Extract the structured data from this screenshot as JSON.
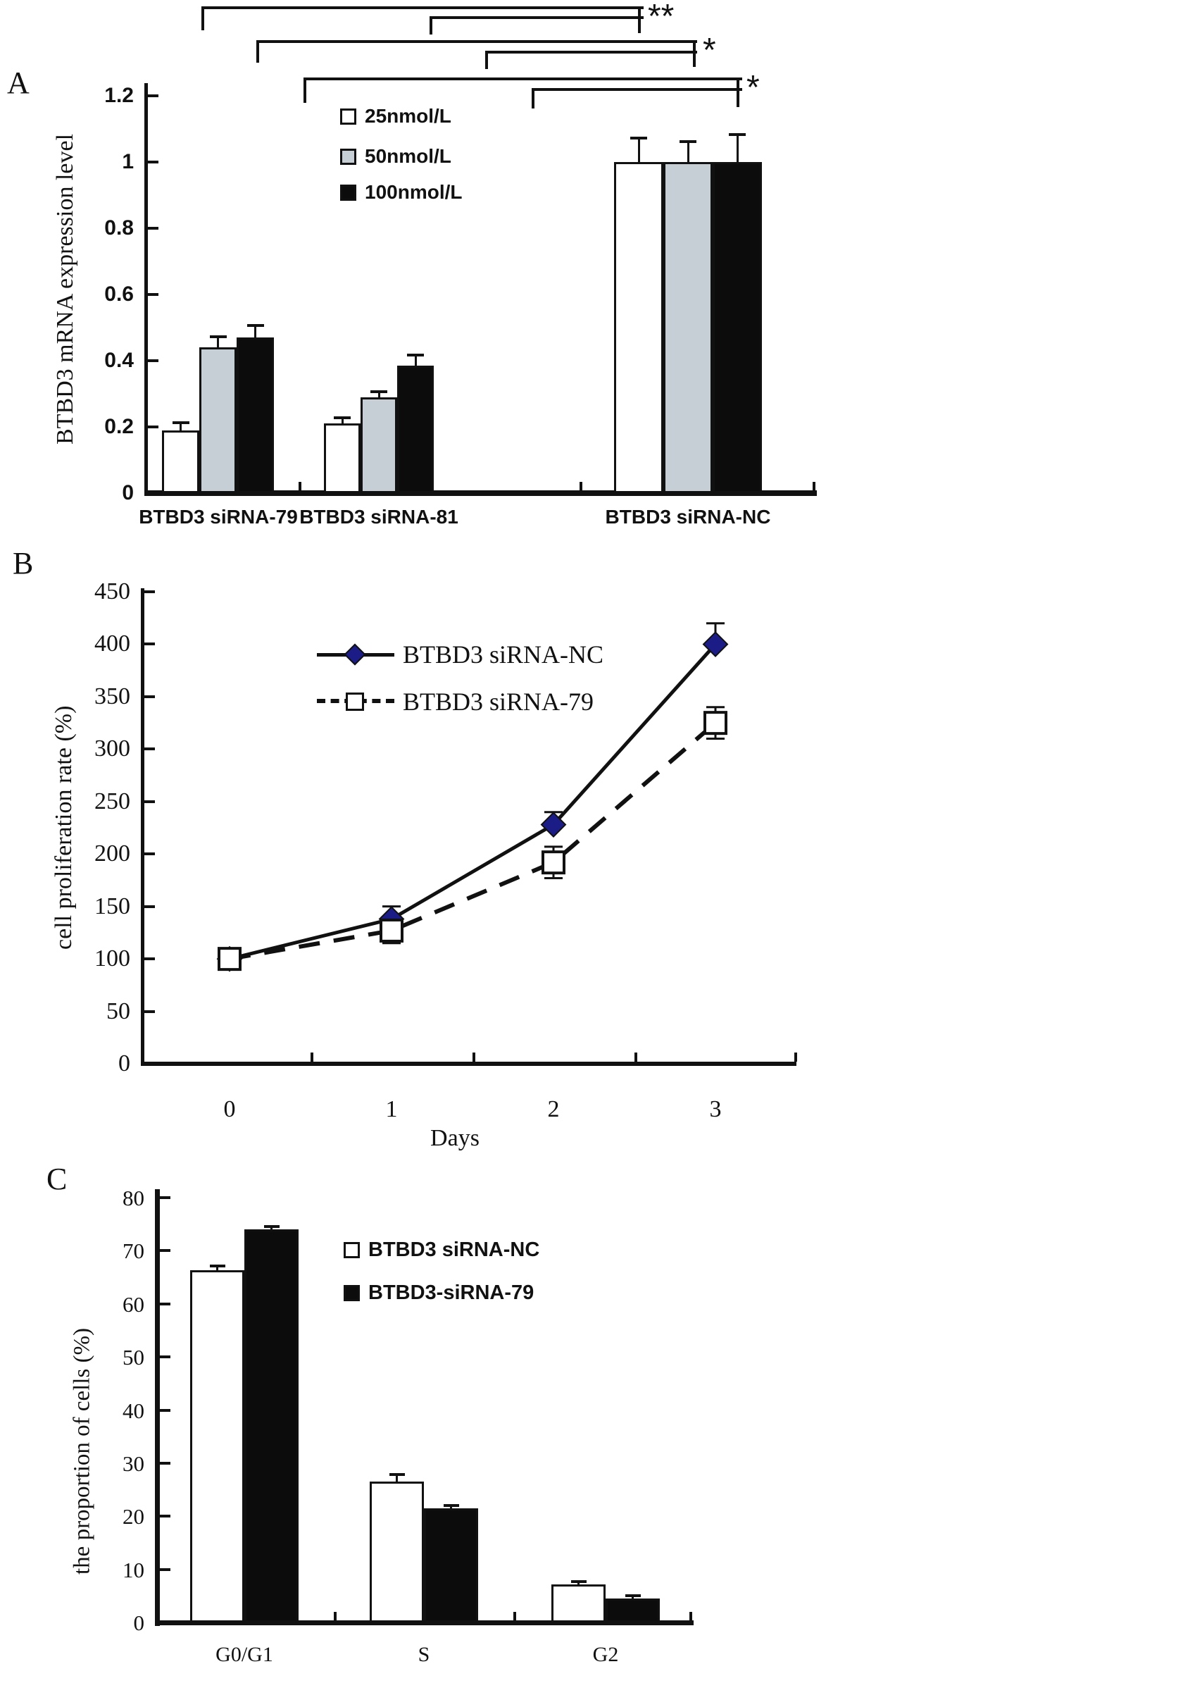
{
  "figure_labels": {
    "panel_a": "A",
    "panel_b": "B",
    "panel_c": "C"
  },
  "colors": {
    "white_series": "#ffffff",
    "gray_series": "#c5cfd5",
    "black_series": "#0c0c0c",
    "diamond_navy": "#1b1c86",
    "ink": "#111111"
  },
  "chart_data": [
    {
      "panel": "A",
      "type": "bar",
      "ylabel": "BTBD3 mRNA expression level",
      "ylim": [
        0,
        1.2
      ],
      "yticks": [
        0,
        0.2,
        0.4,
        0.6,
        0.8,
        1,
        1.2
      ],
      "grid": false,
      "legend_position": "top-inside",
      "categories": [
        "BTBD3 siRNA-79",
        "BTBD3 siRNA-81",
        "BTBD3 siRNA-NC"
      ],
      "series": [
        {
          "name": "25nmol/L",
          "color": "#ffffff",
          "values": [
            0.19,
            0.21,
            1.0
          ],
          "errors": [
            0.02,
            0.015,
            0.07
          ]
        },
        {
          "name": "50nmol/L",
          "color": "#c5cfd5",
          "values": [
            0.44,
            0.29,
            1.0
          ],
          "errors": [
            0.03,
            0.015,
            0.06
          ]
        },
        {
          "name": "100nmol/L",
          "color": "#0c0c0c",
          "values": [
            0.47,
            0.385,
            1.0
          ],
          "errors": [
            0.035,
            0.03,
            0.08
          ]
        }
      ],
      "significance": [
        {
          "label": "**"
        },
        {
          "label": "*"
        },
        {
          "label": "*"
        }
      ]
    },
    {
      "panel": "B",
      "type": "line",
      "ylabel": "cell proliferation rate (%)",
      "xlabel": "Days",
      "ylim": [
        0,
        450
      ],
      "yticks": [
        0,
        50,
        100,
        150,
        200,
        250,
        300,
        350,
        400,
        450
      ],
      "x": [
        0,
        1,
        2,
        3
      ],
      "grid": false,
      "legend_position": "top-left-inside",
      "series": [
        {
          "name": "BTBD3 siRNA-NC",
          "marker": "filled-diamond",
          "marker_color": "#1b1c86",
          "line_style": "solid",
          "values": [
            100,
            138,
            228,
            400
          ],
          "errors": [
            10,
            12,
            12,
            20
          ]
        },
        {
          "name": "BTBD3 siRNA-79",
          "marker": "open-square",
          "marker_color": "#ffffff",
          "line_style": "dashed",
          "values": [
            100,
            127,
            192,
            325
          ],
          "errors": [
            10,
            12,
            15,
            15
          ]
        }
      ]
    },
    {
      "panel": "C",
      "type": "bar",
      "ylabel": "the proportion of cells (%)",
      "ylim": [
        0,
        80
      ],
      "yticks": [
        0,
        10,
        20,
        30,
        40,
        50,
        60,
        70,
        80
      ],
      "grid": false,
      "legend_position": "top-right-inside",
      "categories": [
        "G0/G1",
        "S",
        "G2"
      ],
      "series": [
        {
          "name": "BTBD3 siRNA-NC",
          "color": "#ffffff",
          "values": [
            66.3,
            26.5,
            7.2
          ],
          "errors": [
            0.7,
            1.2,
            0.3
          ]
        },
        {
          "name": "BTBD3-siRNA-79",
          "color": "#0c0c0c",
          "values": [
            74,
            21.5,
            4.5
          ],
          "errors": [
            0.4,
            0.4,
            0.4
          ]
        }
      ]
    }
  ]
}
